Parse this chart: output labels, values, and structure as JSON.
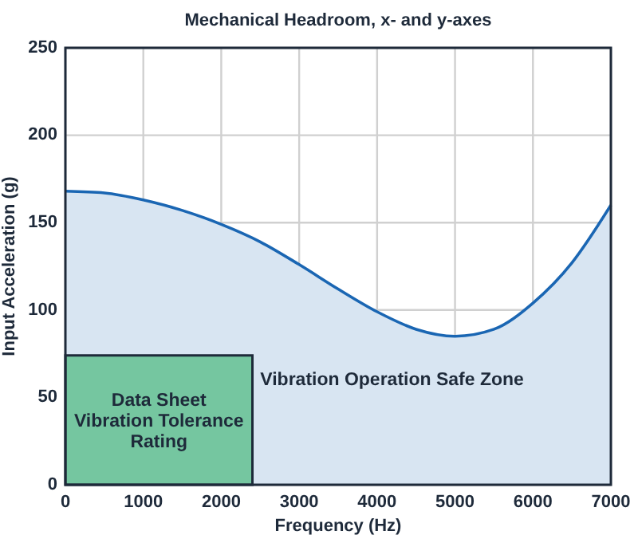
{
  "chart_data": {
    "type": "area",
    "title": "Mechanical Headroom, x- and y-axes",
    "xlabel": "Frequency (Hz)",
    "ylabel": "Input Acceleration (g)",
    "xlim": [
      0,
      7000
    ],
    "xticks": [
      0,
      1000,
      2000,
      3000,
      4000,
      5000,
      6000,
      7000
    ],
    "ylim": [
      0,
      250
    ],
    "yticks": [
      0,
      50,
      100,
      150,
      200,
      250
    ],
    "grid": true,
    "series": [
      {
        "name": "Vibration Operation Safe Zone",
        "color": "#1a66b3",
        "x": [
          0,
          500,
          1000,
          1500,
          2000,
          2500,
          3000,
          3500,
          4000,
          4500,
          5000,
          5500,
          6000,
          6500,
          7000
        ],
        "values": [
          168,
          167,
          163,
          157,
          149,
          139,
          126,
          112,
          99,
          89,
          85,
          89,
          104,
          127,
          160
        ]
      },
      {
        "name": "Data Sheet Vibration Tolerance Rating",
        "color": "#75c6a0",
        "x": [
          0,
          2400
        ],
        "values": [
          74,
          74
        ]
      }
    ]
  }
}
